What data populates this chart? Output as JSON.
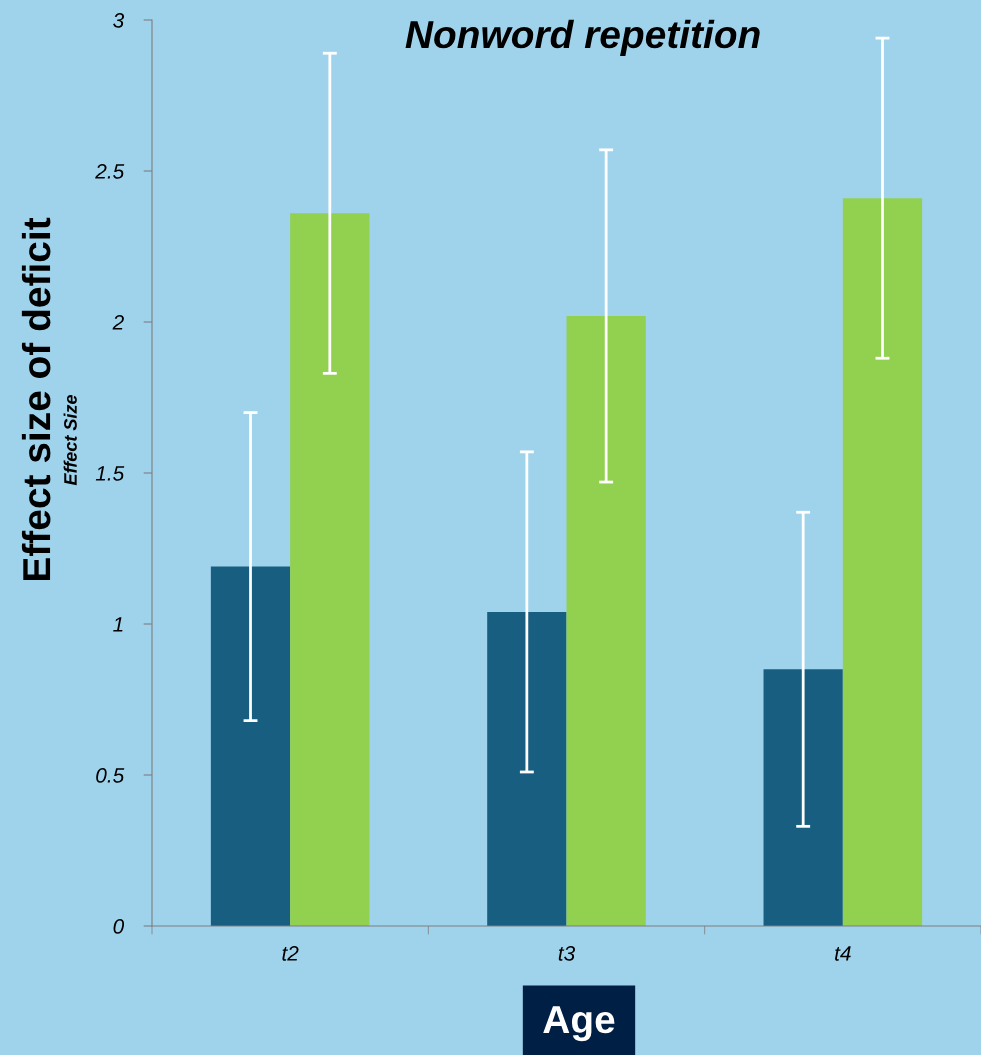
{
  "chart_data": {
    "type": "bar",
    "title": "Nonword repetition",
    "xlabel": "Age",
    "ylabel": "Effect size of deficit",
    "annotations": [
      "Effect Size"
    ],
    "categories": [
      "t2",
      "t3",
      "t4"
    ],
    "series": [
      {
        "color": "#175e80",
        "values": [
          1.19,
          1.04,
          0.85
        ],
        "errors": [
          0.51,
          0.53,
          0.52
        ]
      },
      {
        "color": "#92d050",
        "values": [
          2.36,
          2.02,
          2.41
        ],
        "errors": [
          0.53,
          0.55,
          0.53
        ]
      }
    ],
    "ylim": [
      0,
      3
    ],
    "yticks": [
      0,
      0.5,
      1,
      1.5,
      2,
      2.5,
      3
    ],
    "grid": false,
    "legend": false
  }
}
